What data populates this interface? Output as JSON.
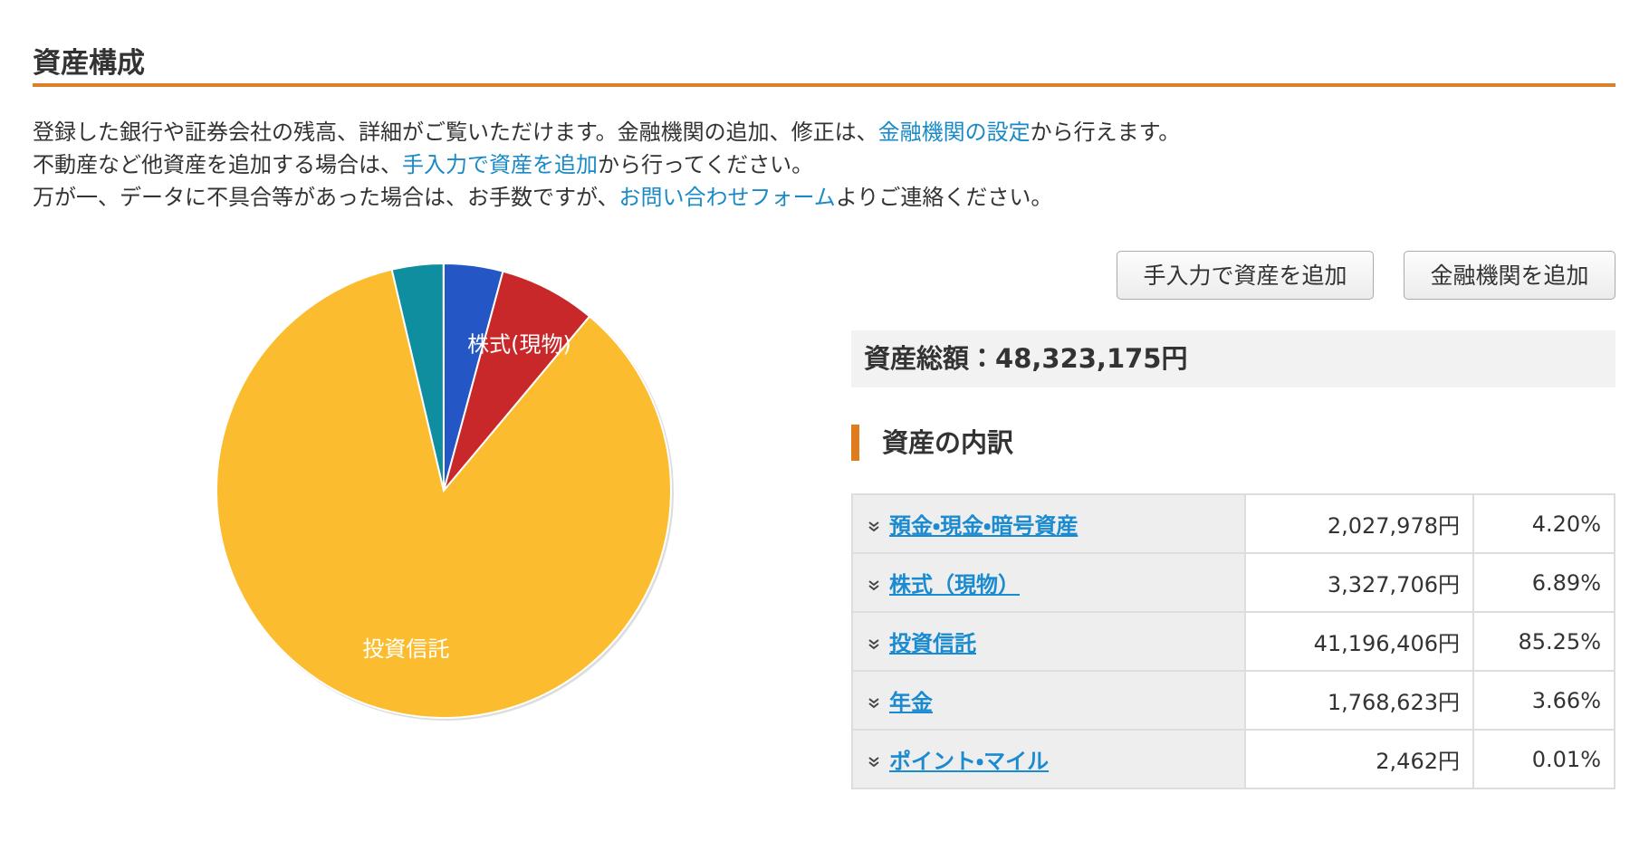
{
  "header": {
    "title": "資産構成"
  },
  "description": {
    "lines": [
      {
        "before": "登録した銀行や証券会社の残高、詳細がご覧いただけます。金融機関の追加、修正は、",
        "link": "金融機関の設定",
        "after": "から行えます。"
      },
      {
        "before": "不動産など他資産を追加する場合は、",
        "link": "手入力で資産を追加",
        "after": "から行ってください。"
      },
      {
        "before": "万が一、データに不具合等があった場合は、お手数ですが、",
        "link": "お問い合わせフォーム",
        "after": "よりご連絡ください。"
      }
    ]
  },
  "buttons": [
    "手入力で資産を追加",
    "金融機関を追加"
  ],
  "total": {
    "label": "資産総額：",
    "value": "48,323,175円"
  },
  "breakdown": {
    "title": "資産の内訳",
    "rows": [
      {
        "name": "預金・現金・暗号資産",
        "amount": "2,027,978円",
        "percent": "4.20%"
      },
      {
        "name": "株式（現物）",
        "amount": "3,327,706円",
        "percent": "6.89%"
      },
      {
        "name": "投資信託",
        "amount": "41,196,406円",
        "percent": "85.25%"
      },
      {
        "name": "年金",
        "amount": "1,768,623円",
        "percent": "3.66%"
      },
      {
        "name": "ポイント・マイル",
        "amount": "2,462円",
        "percent": "0.01%"
      }
    ]
  },
  "chart_data": {
    "type": "pie",
    "categories": [
      null,
      "株式(現物)",
      "投資信託",
      null,
      null
    ],
    "values": [
      4.2,
      6.89,
      85.25,
      3.66,
      0.01
    ],
    "colors": [
      "#2457c5",
      "#c9282b",
      "#fbbd2f",
      "#0e8e9e",
      "#3a9a3a"
    ]
  }
}
